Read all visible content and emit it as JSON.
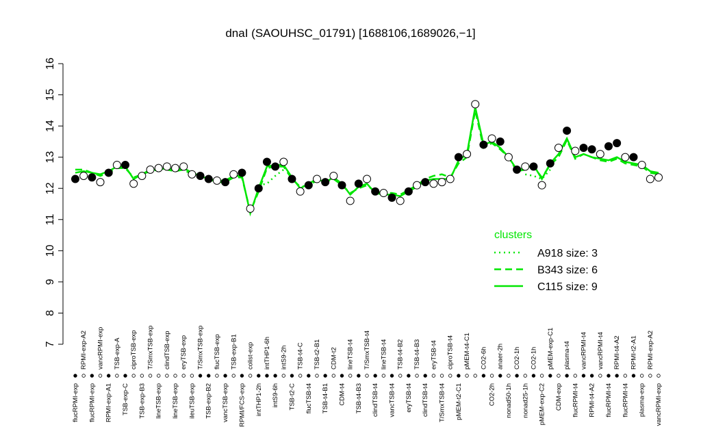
{
  "chart_data": {
    "type": "line",
    "title": "dnaI (SAOUHSC_01791) [1688106,1689026,−1]",
    "categories": [
      "flucRPMI-exp",
      "RPMI-exp-A2",
      "flucRPMI-exp",
      "vancRPMI-exp",
      "RPMI-exp-A1",
      "TSB-exp-A",
      "TSB-exp-C",
      "ciproTSB-exp",
      "TSB-exp-B3",
      "T/SmxTSB-exp",
      "lineTSB-exp",
      "clindTSB-exp",
      "lineTSB-exp",
      "eryTSB-exp",
      "ileuTSB-exp",
      "T/SmxTSB-exp",
      "TSB-exp-B2",
      "flucTSB-exp",
      "vancTSB-exp",
      "TSB-exp-B1",
      "RPMI/FCS-exp",
      "colist-exp",
      "intTHP1-2h",
      "intTHP1-6h",
      "intS9-6h",
      "intS9-2h",
      "TSB-t2-C",
      "TSB-t4-C",
      "flucTSB-t4",
      "TSB-t2-B1",
      "TSB-t4-B1",
      "CDM-t2",
      "CDM-t4",
      "lineTSB-t4",
      "TSB-t4-B3",
      "T/SmxTSB-t4",
      "clindTSB-t4",
      "lineTSB-t4",
      "vancTSB-t4",
      "TSB-t4-B2",
      "eryTSB-t4",
      "TSB-t4-B3",
      "clindTSB-t4",
      "eryTSB-t4",
      "T/SmxTSB-t4",
      "ciproTSB-t4",
      "pMEM-t2-C1",
      "pMEM-t4-C1",
      null,
      "CO2-6h",
      "CO2-2h",
      "anaer-2h",
      "nonad50-1h",
      "CO2-1h",
      "nonad25-1h",
      "CO2-1h",
      "pMEM-exp-C2",
      "pMEM-exp-C1",
      "CDM-exp",
      "plasma-t4",
      "flucRPMI-t4",
      "vancRPMI-t4",
      "RPMI-t4-A2",
      "vancRPMI-t4",
      "flucRPMI-t4",
      "RPMI-t4-A2",
      "flucRPMI-t4",
      "RPMI-t2-A1",
      "plasma-exp",
      "RPMI-exp-A2",
      "vancRPMI-exp"
    ],
    "values": [
      12.3,
      12.4,
      12.35,
      12.2,
      12.5,
      12.75,
      12.75,
      12.15,
      12.4,
      12.6,
      12.65,
      12.7,
      12.65,
      12.7,
      12.45,
      12.4,
      12.3,
      12.25,
      12.2,
      12.45,
      12.5,
      11.35,
      12.0,
      12.85,
      12.7,
      12.85,
      12.3,
      11.9,
      12.1,
      12.3,
      12.2,
      12.4,
      12.1,
      11.6,
      12.15,
      12.3,
      11.9,
      11.85,
      11.7,
      11.6,
      11.9,
      12.1,
      12.2,
      12.15,
      12.2,
      12.3,
      13.0,
      13.1,
      14.7,
      13.4,
      13.6,
      13.5,
      13.0,
      12.6,
      12.7,
      12.7,
      12.1,
      12.8,
      13.3,
      13.85,
      13.2,
      13.3,
      13.25,
      13.1,
      13.35,
      13.45,
      13.0,
      13.0,
      12.75,
      12.3,
      12.35
    ],
    "point_colors": [
      "#000000",
      "#ffffff",
      "#000000",
      "#ffffff",
      "#000000",
      "#ffffff",
      "#000000",
      "#ffffff",
      "#ffffff",
      "#ffffff",
      "#ffffff",
      "#ffffff",
      "#ffffff",
      "#ffffff",
      "#ffffff",
      "#000000",
      "#000000",
      "#ffffff",
      "#000000",
      "#ffffff",
      "#000000",
      "#ffffff",
      "#000000",
      "#000000",
      "#000000",
      "#ffffff",
      "#000000",
      "#ffffff",
      "#000000",
      "#ffffff",
      "#000000",
      "#ffffff",
      "#000000",
      "#ffffff",
      "#000000",
      "#ffffff",
      "#000000",
      "#ffffff",
      "#000000",
      "#ffffff",
      "#000000",
      "#ffffff",
      "#000000",
      "#ffffff",
      "#ffffff",
      "#ffffff",
      "#000000",
      "#ffffff",
      "#ffffff",
      "#000000",
      "#ffffff",
      "#000000",
      "#ffffff",
      "#000000",
      "#ffffff",
      "#000000",
      "#ffffff",
      "#000000",
      "#ffffff",
      "#000000",
      "#ffffff",
      "#000000",
      "#000000",
      "#ffffff",
      "#000000",
      "#000000",
      "#ffffff",
      "#000000",
      "#ffffff",
      "#ffffff",
      "#ffffff"
    ],
    "series": [
      {
        "name": "A918 size: 3",
        "color": "#00e600",
        "style": "dotted",
        "values": [
          null,
          null,
          null,
          null,
          null,
          null,
          null,
          null,
          null,
          null,
          null,
          null,
          null,
          null,
          null,
          null,
          null,
          null,
          null,
          null,
          null,
          null,
          12.1,
          12.15,
          12.4,
          12.6,
          null,
          null,
          null,
          null,
          null,
          null,
          null,
          null,
          null,
          null,
          null,
          null,
          null,
          null,
          null,
          null,
          null,
          null,
          null,
          null,
          null,
          null,
          null,
          null,
          null,
          null,
          null,
          null,
          12.45,
          12.4,
          12.3,
          12.6,
          null,
          null,
          null,
          null,
          null,
          null,
          null,
          null,
          null,
          null,
          null,
          null,
          null
        ]
      },
      {
        "name": "B343 size: 6",
        "color": "#00e600",
        "style": "dashed",
        "values": [
          12.6,
          12.6,
          12.5,
          12.4,
          12.5,
          12.65,
          12.65,
          12.35,
          12.45,
          12.55,
          12.6,
          12.6,
          12.55,
          12.6,
          12.45,
          12.4,
          12.3,
          12.2,
          12.2,
          12.35,
          12.35,
          11.25,
          11.9,
          12.65,
          12.7,
          12.7,
          12.3,
          12.05,
          12.1,
          12.25,
          12.2,
          12.3,
          12.1,
          11.85,
          12.0,
          12.1,
          11.9,
          11.85,
          11.85,
          11.8,
          11.95,
          12.1,
          12.3,
          12.4,
          12.45,
          12.35,
          12.8,
          13.0,
          14.5,
          13.3,
          13.45,
          13.25,
          13.0,
          12.55,
          12.6,
          12.7,
          12.35,
          12.75,
          13.0,
          13.55,
          12.95,
          13.1,
          13.0,
          12.9,
          12.85,
          12.95,
          12.8,
          12.75,
          12.7,
          12.5,
          12.45
        ]
      },
      {
        "name": "C115 size: 9",
        "color": "#00e600",
        "style": "solid",
        "values": [
          12.5,
          12.55,
          12.5,
          12.45,
          12.55,
          12.7,
          12.7,
          12.3,
          12.45,
          12.6,
          12.6,
          12.65,
          12.6,
          12.65,
          12.5,
          12.4,
          12.3,
          12.25,
          12.25,
          12.4,
          12.4,
          11.2,
          12.0,
          12.7,
          12.75,
          12.75,
          12.35,
          12.0,
          12.15,
          12.3,
          12.2,
          12.35,
          12.15,
          11.8,
          12.05,
          12.15,
          11.85,
          11.8,
          11.8,
          11.75,
          11.9,
          12.05,
          12.25,
          12.3,
          12.3,
          12.3,
          12.9,
          13.1,
          14.6,
          13.4,
          13.5,
          13.3,
          13.0,
          12.6,
          12.65,
          12.75,
          12.3,
          12.8,
          13.1,
          13.6,
          13.0,
          13.1,
          13.0,
          12.95,
          12.9,
          13.0,
          12.85,
          12.8,
          12.75,
          12.55,
          12.5
        ]
      }
    ],
    "legend_title": "clusters",
    "ylim": [
      7,
      16
    ],
    "yticks": [
      7,
      8,
      9,
      10,
      11,
      12,
      13,
      14,
      15,
      16
    ]
  }
}
